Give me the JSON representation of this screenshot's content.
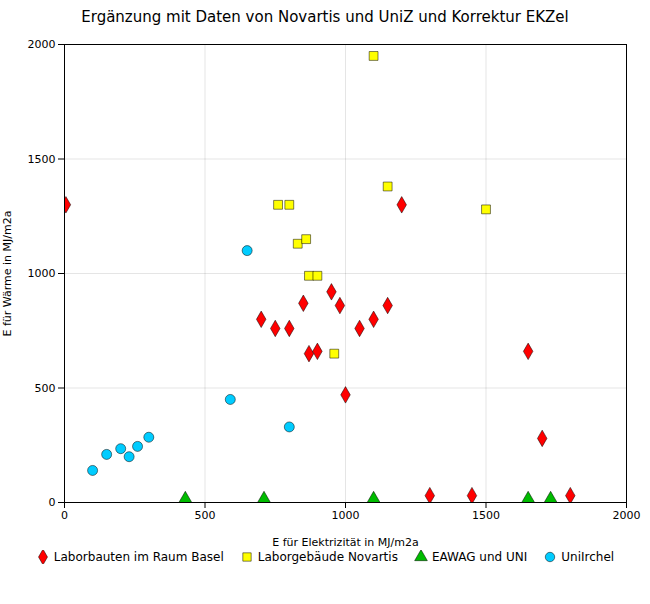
{
  "chart_data": {
    "type": "scatter",
    "title": "Ergänzung mit Daten von Novartis und UniZ und Korrektur EKZel",
    "xlabel": "E für Elektrizität in MJ/m2a",
    "ylabel": "E für Wärme in MJ/m2a",
    "xlim": [
      0,
      2000
    ],
    "ylim": [
      0,
      2000
    ],
    "xticks": [
      0,
      500,
      1000,
      1500,
      2000
    ],
    "yticks": [
      0,
      500,
      1000,
      1500,
      2000
    ],
    "grid": true,
    "legend": "bottom",
    "series": [
      {
        "name": "Laborbauten im Raum Basel",
        "color": "#ff0000",
        "marker": "diamond",
        "x": [
          5,
          700,
          750,
          800,
          850,
          870,
          900,
          950,
          980,
          1000,
          1050,
          1100,
          1150,
          1200,
          1300,
          1450,
          1650,
          1700,
          1800
        ],
        "values": [
          1300,
          800,
          760,
          760,
          870,
          650,
          660,
          920,
          860,
          470,
          760,
          800,
          860,
          1300,
          30,
          30,
          660,
          280,
          30
        ]
      },
      {
        "name": "Laborgebäude Novartis",
        "color": "#ffff00",
        "marker": "square",
        "x": [
          760,
          800,
          830,
          860,
          870,
          900,
          960,
          1100,
          1150,
          1500
        ],
        "values": [
          1300,
          1300,
          1130,
          1150,
          990,
          990,
          650,
          1950,
          1380,
          1280
        ]
      },
      {
        "name": "EAWAG und UNI",
        "color": "#00bb00",
        "marker": "triangle",
        "x": [
          430,
          710,
          1100,
          1650,
          1730
        ],
        "values": [
          15,
          15,
          15,
          15,
          15
        ]
      },
      {
        "name": "UniIrchel",
        "color": "#00ccff",
        "marker": "circle",
        "x": [
          100,
          150,
          200,
          230,
          260,
          300,
          590,
          650,
          800
        ],
        "values": [
          140,
          210,
          235,
          200,
          245,
          285,
          450,
          1100,
          330
        ]
      }
    ]
  }
}
